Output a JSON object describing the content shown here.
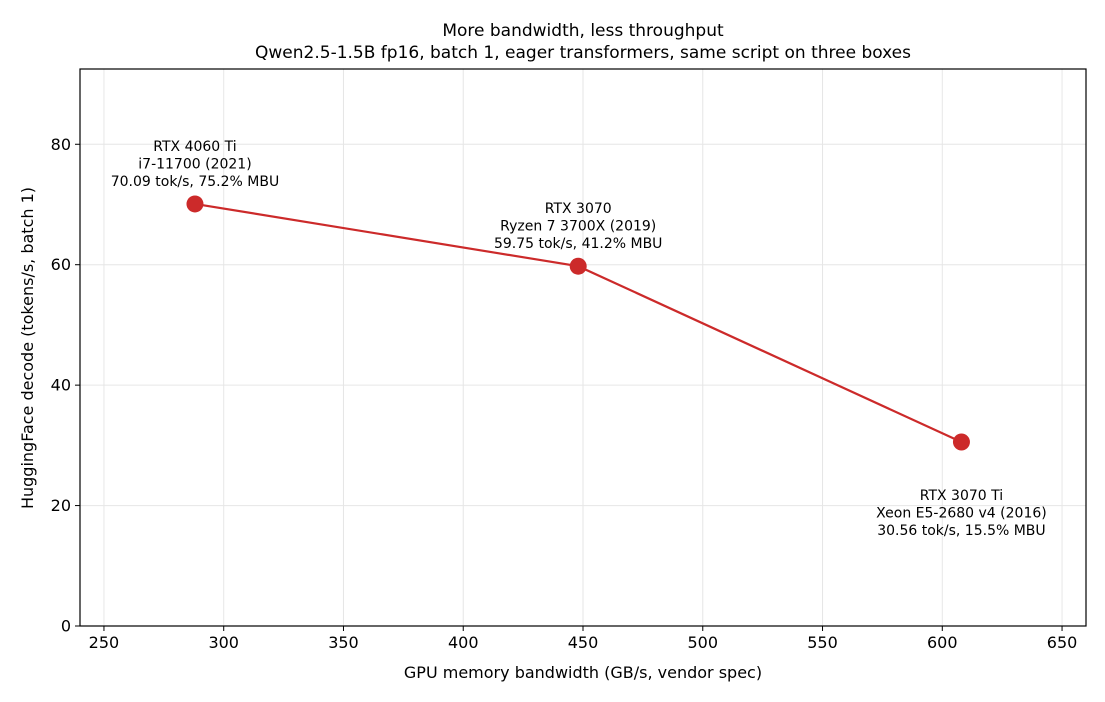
{
  "chart_data": {
    "type": "line",
    "title": "More bandwidth, less throughput",
    "subtitle": "Qwen2.5-1.5B fp16, batch 1, eager transformers, same script on three boxes",
    "xlabel": "GPU memory bandwidth (GB/s, vendor spec)",
    "ylabel": "HuggingFace decode (tokens/s, batch 1)",
    "xlim": [
      240,
      660
    ],
    "ylim": [
      0,
      92.5
    ],
    "xticks": [
      250,
      300,
      350,
      400,
      450,
      500,
      550,
      600,
      650
    ],
    "yticks": [
      0,
      20,
      40,
      60,
      80
    ],
    "grid": true,
    "color": "#cc2a2a",
    "x": [
      288,
      448,
      608
    ],
    "y": [
      70.09,
      59.75,
      30.56
    ],
    "annotations": [
      {
        "lines": [
          "RTX 4060 Ti",
          "i7-11700 (2021)",
          "70.09 tok/s, 75.2% MBU"
        ],
        "placement": "above"
      },
      {
        "lines": [
          "RTX 3070",
          "Ryzen 7 3700X (2019)",
          "59.75 tok/s, 41.2% MBU"
        ],
        "placement": "above"
      },
      {
        "lines": [
          "RTX 3070 Ti",
          "Xeon E5-2680 v4 (2016)",
          "30.56 tok/s, 15.5% MBU"
        ],
        "placement": "below"
      }
    ]
  }
}
